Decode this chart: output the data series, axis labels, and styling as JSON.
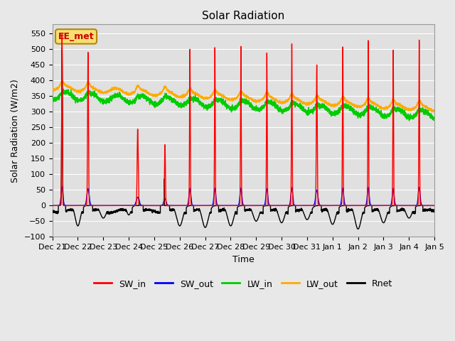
{
  "title": "Solar Radiation",
  "xlabel": "Time",
  "ylabel": "Solar Radiation (W/m2)",
  "ylim": [
    -100,
    580
  ],
  "xtick_labels": [
    "Dec 21",
    "Dec 22",
    "Dec 23",
    "Dec 24",
    "Dec 25",
    "Dec 26",
    "Dec 27",
    "Dec 28",
    "Dec 29",
    "Dec 30",
    "Dec 31",
    "Jan 1",
    "Jan 2",
    "Jan 3",
    "Jan 4",
    "Jan 5"
  ],
  "colors": {
    "SW_in": "#ff0000",
    "SW_out": "#0000ff",
    "LW_in": "#00cc00",
    "LW_out": "#ffaa00",
    "Rnet": "#000000"
  },
  "annotation": "EE_met",
  "background_color": "#e8e8e8",
  "plot_bg_color": "#e0e0e0",
  "n_days": 15,
  "pts_per_day": 288
}
